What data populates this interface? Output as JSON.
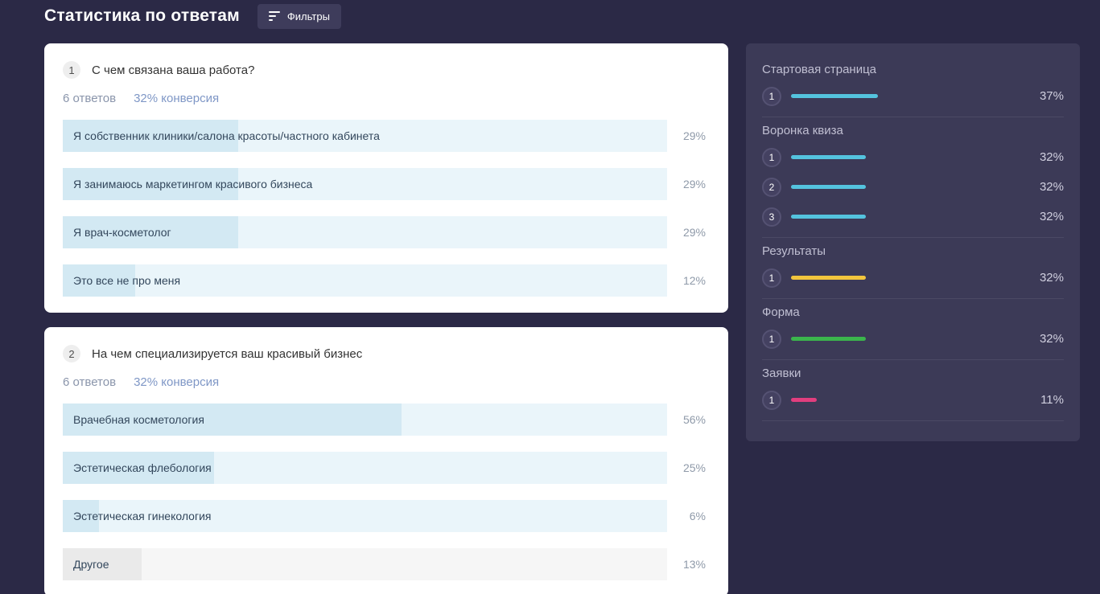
{
  "header": {
    "title": "Статистика по ответам",
    "filters_label": "Фильтры"
  },
  "questions": [
    {
      "number": "1",
      "title": "С чем связана ваша работа?",
      "answers_count": "6 ответов",
      "conversion": "32% конверсия",
      "options": [
        {
          "label": "Я собственник клиники/салона красоты/частного кабинета",
          "percent": 29,
          "percent_label": "29%"
        },
        {
          "label": "Я занимаюсь маркетингом красивого бизнеса",
          "percent": 29,
          "percent_label": "29%"
        },
        {
          "label": "Я врач-косметолог",
          "percent": 29,
          "percent_label": "29%"
        },
        {
          "label": "Это все не про меня",
          "percent": 12,
          "percent_label": "12%"
        }
      ]
    },
    {
      "number": "2",
      "title": "На чем специализируется ваш красивый бизнес",
      "answers_count": "6 ответов",
      "conversion": "32% конверсия",
      "options": [
        {
          "label": "Врачебная косметология",
          "percent": 56,
          "percent_label": "56%"
        },
        {
          "label": "Эстетическая флебология",
          "percent": 25,
          "percent_label": "25%"
        },
        {
          "label": "Эстетическая гинекология",
          "percent": 6,
          "percent_label": "6%"
        },
        {
          "label": "Другое",
          "percent": 13,
          "percent_label": "13%"
        }
      ]
    }
  ],
  "funnel": {
    "sections": [
      {
        "title": "Стартовая страница",
        "items": [
          {
            "number": "1",
            "percent": 37,
            "percent_label": "37%",
            "color": "#54c3de"
          }
        ]
      },
      {
        "title": "Воронка квиза",
        "items": [
          {
            "number": "1",
            "percent": 32,
            "percent_label": "32%",
            "color": "#54c3de"
          },
          {
            "number": "2",
            "percent": 32,
            "percent_label": "32%",
            "color": "#54c3de"
          },
          {
            "number": "3",
            "percent": 32,
            "percent_label": "32%",
            "color": "#54c3de"
          }
        ]
      },
      {
        "title": "Результаты",
        "items": [
          {
            "number": "1",
            "percent": 32,
            "percent_label": "32%",
            "color": "#f2c53d"
          }
        ]
      },
      {
        "title": "Форма",
        "items": [
          {
            "number": "1",
            "percent": 32,
            "percent_label": "32%",
            "color": "#3bb54c"
          }
        ]
      },
      {
        "title": "Заявки",
        "items": [
          {
            "number": "1",
            "percent": 11,
            "percent_label": "11%",
            "color": "#e23e7e"
          }
        ]
      }
    ]
  },
  "colors": {
    "page_bg": "#2b2946",
    "panel_bg": "#3c3a57",
    "card_bg": "#ffffff",
    "bar_track": "#eaf5fa",
    "bar_fill": "#d3e9f3",
    "gray_track": "#f6f6f6",
    "gray_fill": "#eaeaea",
    "accent_cyan": "#54c3de",
    "accent_yellow": "#f2c53d",
    "accent_green": "#3bb54c",
    "accent_pink": "#e23e7e"
  }
}
